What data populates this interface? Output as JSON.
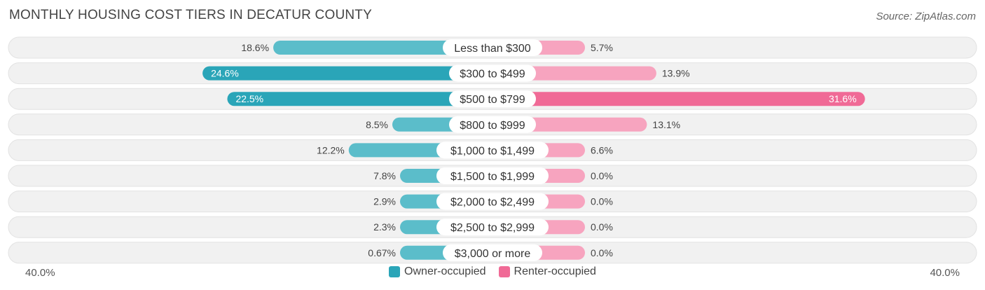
{
  "chart_data": {
    "type": "bar",
    "orientation": "horizontal-diverging",
    "title": "MONTHLY HOUSING COST TIERS IN DECATUR COUNTY",
    "source": "Source: ZipAtlas.com",
    "categories": [
      "Less than $300",
      "$300 to $499",
      "$500 to $799",
      "$800 to $999",
      "$1,000 to $1,499",
      "$1,500 to $1,999",
      "$2,000 to $2,499",
      "$2,500 to $2,999",
      "$3,000 or more"
    ],
    "series": [
      {
        "name": "Owner-occupied",
        "values": [
          18.6,
          24.6,
          22.5,
          8.5,
          12.2,
          7.8,
          2.9,
          2.3,
          0.67
        ],
        "labels": [
          "18.6%",
          "24.6%",
          "22.5%",
          "8.5%",
          "12.2%",
          "7.8%",
          "2.9%",
          "2.3%",
          "0.67%"
        ]
      },
      {
        "name": "Renter-occupied",
        "values": [
          5.7,
          13.9,
          31.6,
          13.1,
          6.6,
          0.0,
          0.0,
          0.0,
          0.0
        ],
        "labels": [
          "5.7%",
          "13.9%",
          "31.6%",
          "13.1%",
          "6.6%",
          "0.0%",
          "0.0%",
          "0.0%",
          "0.0%"
        ]
      }
    ],
    "axis": {
      "left_label": "40.0%",
      "right_label": "40.0%",
      "max": 40.0
    },
    "colors": {
      "owner": "#5bbdca",
      "owner_strong": "#2aa5b8",
      "renter": "#f7a4bf",
      "renter_strong": "#f06a96",
      "row_bg": "#f1f1f1"
    }
  }
}
